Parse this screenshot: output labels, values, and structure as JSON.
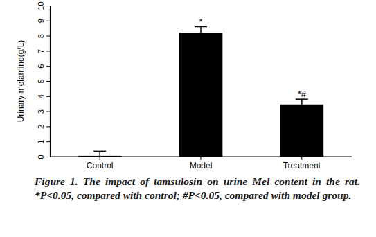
{
  "chart_data": {
    "type": "bar",
    "caption": "Figure 1. The impact of tamsulosin on urine Mel content in the rat. *P<0.05, compared with control; #P<0.05, compared with model group.",
    "y_label": "Urinary melamine(g/L)",
    "categories": [
      "Control",
      "Model",
      "Treatment"
    ],
    "values": [
      0.05,
      8.2,
      3.45
    ],
    "errors": [
      0.3,
      0.4,
      0.35
    ],
    "annotations": [
      null,
      "*",
      "*#"
    ],
    "color": "#000000",
    "ylim": [
      0,
      10
    ],
    "yticks": [
      0,
      1,
      2,
      3,
      4,
      5,
      6,
      7,
      8,
      9,
      10
    ],
    "grid": false
  }
}
